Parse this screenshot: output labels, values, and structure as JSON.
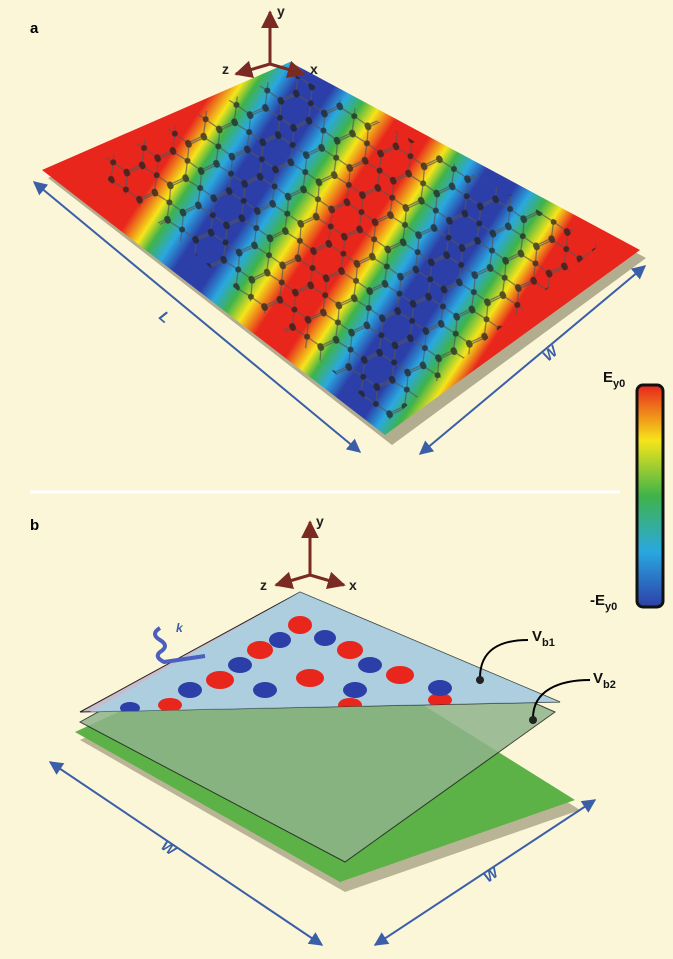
{
  "panels": [
    {
      "label": "a",
      "axes": {
        "x": "x",
        "y": "y",
        "z": "z"
      },
      "dimensions": [
        "L",
        "W"
      ]
    },
    {
      "label": "b",
      "axes": {
        "x": "x",
        "y": "y",
        "z": "z"
      },
      "dimensions": [
        "W",
        "W"
      ],
      "wave": "k",
      "plates": [
        {
          "symbol": "V",
          "sub": "b1"
        },
        {
          "symbol": "V",
          "sub": "b2"
        }
      ]
    }
  ],
  "colorbar": {
    "max": {
      "symbol": "E",
      "sub": "y0"
    },
    "min": {
      "symbol": "-E",
      "sub": "y0"
    }
  }
}
